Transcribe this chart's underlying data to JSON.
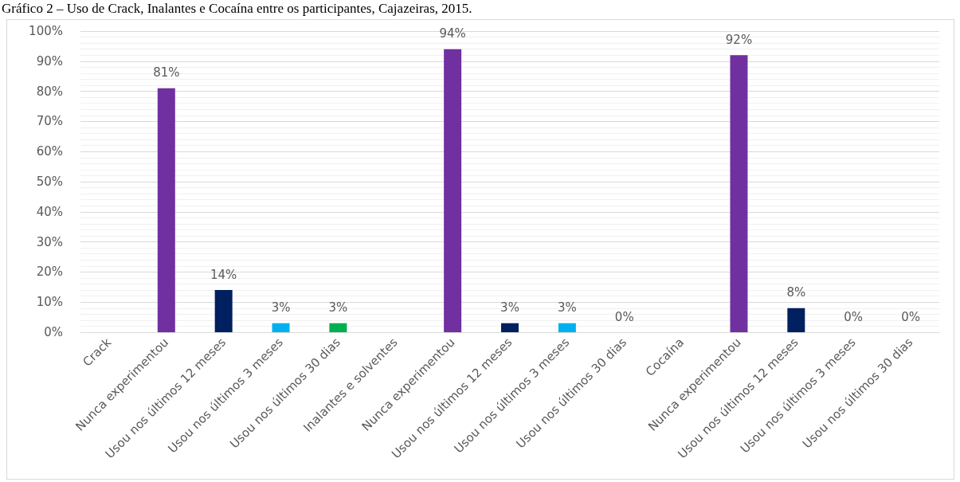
{
  "chart_data": {
    "type": "bar",
    "title": "Gráfico 2 – Uso de Crack, Inalantes e Cocaína entre os participantes, Cajazeiras, 2015.",
    "categories": [
      "Crack",
      "Nunca experimentou",
      "Usou nos últimos 12 meses",
      "Usou nos últimos 3 meses",
      "Usou nos últimos 30 dias",
      "Inalantes e solventes",
      "Nunca experimentou",
      "Usou nos últimos 12 meses",
      "Usou nos últimos 3 meses",
      "Usou nos últimos 30 dias",
      "Cocaína",
      "Nunca experimentou",
      "Usou nos últimos 12 meses",
      "Usou nos últimos 3 meses",
      "Usou nos últimos 30 dias"
    ],
    "values": [
      null,
      81,
      14,
      3,
      3,
      null,
      94,
      3,
      3,
      0,
      null,
      92,
      8,
      0,
      0
    ],
    "colors": [
      null,
      "#7030a0",
      "#002060",
      "#00b0f0",
      "#00b050",
      null,
      "#7030a0",
      "#002060",
      "#00b0f0",
      "#00b050",
      null,
      "#7030a0",
      "#002060",
      "#00b0f0",
      "#00b050"
    ],
    "value_labels": [
      null,
      "81%",
      "14%",
      "3%",
      "3%",
      null,
      "94%",
      "3%",
      "3%",
      "0%",
      null,
      "92%",
      "8%",
      "0%",
      "0%"
    ],
    "ylim": [
      0,
      100
    ],
    "yticks": [
      {
        "value": 0,
        "label": "0%"
      },
      {
        "value": 10,
        "label": "10%"
      },
      {
        "value": 20,
        "label": "20%"
      },
      {
        "value": 30,
        "label": "30%"
      },
      {
        "value": 40,
        "label": "40%"
      },
      {
        "value": 50,
        "label": "50%"
      },
      {
        "value": 60,
        "label": "60%"
      },
      {
        "value": 70,
        "label": "70%"
      },
      {
        "value": 80,
        "label": "80%"
      },
      {
        "value": 90,
        "label": "90%"
      },
      {
        "value": 100,
        "label": "100%"
      }
    ],
    "grid": "y"
  }
}
